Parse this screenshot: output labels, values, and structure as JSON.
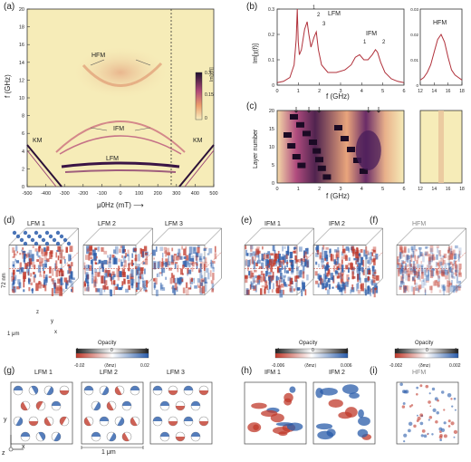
{
  "panels": {
    "a": "(a)",
    "b": "(b)",
    "c": "(c)",
    "d": "(d)",
    "e": "(e)",
    "f": "(f)",
    "g": "(g)",
    "h": "(h)",
    "i": "(i)"
  },
  "chart_data": [
    {
      "id": "a",
      "type": "heatmap",
      "xlabel": "μ0Hz (mT)",
      "ylabel": "f (GHz)",
      "xlim": [
        -500,
        500
      ],
      "ylim": [
        0,
        20
      ],
      "xticks": [
        "-500",
        "-400",
        "-300",
        "-200",
        "-100",
        "0",
        "100",
        "200",
        "300",
        "400",
        "500"
      ],
      "yticks": [
        "0",
        "2",
        "4",
        "6",
        "8",
        "10",
        "12",
        "14",
        "16",
        "18",
        "20"
      ],
      "colorbar": {
        "label": "Im[χ(f)]",
        "min": "0",
        "mid": "0.15",
        "max": "0.3"
      },
      "annotations": [
        "HFM",
        "IFM",
        "LFM",
        "KM",
        "KM"
      ],
      "dashed_line_x": 290
    },
    {
      "id": "b-left",
      "type": "line",
      "xlabel": "f (GHz)",
      "ylabel": "Im[χ(f)]",
      "xlim": [
        0,
        6
      ],
      "ylim": [
        0,
        0.3
      ],
      "xticks": [
        "0",
        "1",
        "2",
        "3",
        "4",
        "5",
        "6"
      ],
      "yticks": [
        "0",
        "0.1",
        "0.2",
        "0.3"
      ],
      "annotations": [
        "1",
        "2",
        "3",
        "LFM",
        "IFM",
        "1",
        "2"
      ],
      "x": [
        0,
        0.3,
        0.6,
        0.8,
        0.9,
        0.95,
        1.0,
        1.05,
        1.15,
        1.3,
        1.42,
        1.5,
        1.6,
        1.75,
        1.85,
        1.95,
        2.1,
        2.4,
        2.8,
        3.2,
        3.5,
        3.7,
        3.9,
        4.1,
        4.3,
        4.5,
        4.65,
        4.75,
        4.9,
        5.1,
        5.4,
        5.7,
        6.0
      ],
      "y": [
        0.01,
        0.015,
        0.03,
        0.08,
        0.18,
        0.3,
        0.17,
        0.12,
        0.14,
        0.22,
        0.25,
        0.2,
        0.15,
        0.19,
        0.21,
        0.14,
        0.08,
        0.05,
        0.05,
        0.06,
        0.08,
        0.11,
        0.12,
        0.1,
        0.1,
        0.12,
        0.14,
        0.13,
        0.09,
        0.05,
        0.025,
        0.015,
        0.01
      ]
    },
    {
      "id": "b-right",
      "type": "line",
      "xlabel": "",
      "xlim": [
        12,
        18
      ],
      "ylim": [
        0,
        0.03
      ],
      "xticks": [
        "12",
        "14",
        "16",
        "18"
      ],
      "yticks": [
        "0",
        "0.01",
        "0.02",
        "0.03"
      ],
      "annotations": [
        "HFM"
      ],
      "x": [
        12,
        12.5,
        13,
        13.5,
        14,
        14.5,
        15,
        15.5,
        16,
        16.5,
        17,
        17.5,
        18
      ],
      "y": [
        0.002,
        0.003,
        0.005,
        0.008,
        0.013,
        0.018,
        0.02,
        0.017,
        0.011,
        0.006,
        0.004,
        0.003,
        0.002
      ]
    },
    {
      "id": "c",
      "type": "heatmap",
      "xlabel": "f (GHz)",
      "ylabel": "Layer number",
      "xlim": [
        0,
        6
      ],
      "ylim": [
        0,
        20
      ],
      "xticks": [
        "0",
        "1",
        "2",
        "3",
        "4",
        "5",
        "6",
        "12",
        "14",
        "16",
        "18"
      ],
      "yticks": [
        "0",
        "5",
        "10",
        "15",
        "20"
      ]
    }
  ],
  "d": {
    "titles": [
      "LFM 1",
      "LFM 2",
      "LFM 3"
    ],
    "thickness": "72 nm",
    "scale": "1 μm",
    "axes": [
      "z",
      "y",
      "x"
    ],
    "opacity": "Opacity",
    "cb_top": [
      "1",
      "0",
      "1"
    ],
    "cb_bottom": [
      "-0.02",
      "⟨δmz⟩",
      "0.02"
    ]
  },
  "e": {
    "titles": [
      "IFM 1",
      "IFM 2"
    ],
    "opacity": "Opacity",
    "cb_top": [
      "1",
      "0",
      "1"
    ],
    "cb_bottom": [
      "-0.006",
      "⟨δmz⟩",
      "0.006"
    ]
  },
  "f": {
    "titles": [
      "HFM"
    ],
    "opacity": "Opacity",
    "cb_top": [
      "1",
      "0",
      "1"
    ],
    "cb_bottom": [
      "-0.002",
      "⟨δmz⟩",
      "0.002"
    ]
  },
  "g": {
    "titles": [
      "LFM 1",
      "LFM 2",
      "LFM 3"
    ],
    "scale": "1 μm",
    "axes": [
      "y",
      "x",
      "z"
    ]
  },
  "h": {
    "titles": [
      "IFM 1",
      "IFM 2"
    ]
  },
  "i": {
    "titles": [
      "HFM"
    ]
  },
  "colors": {
    "red": "#c0392b",
    "blue": "#2a5caa",
    "cream": "#f6ecb8",
    "dark": "#2b1138"
  }
}
